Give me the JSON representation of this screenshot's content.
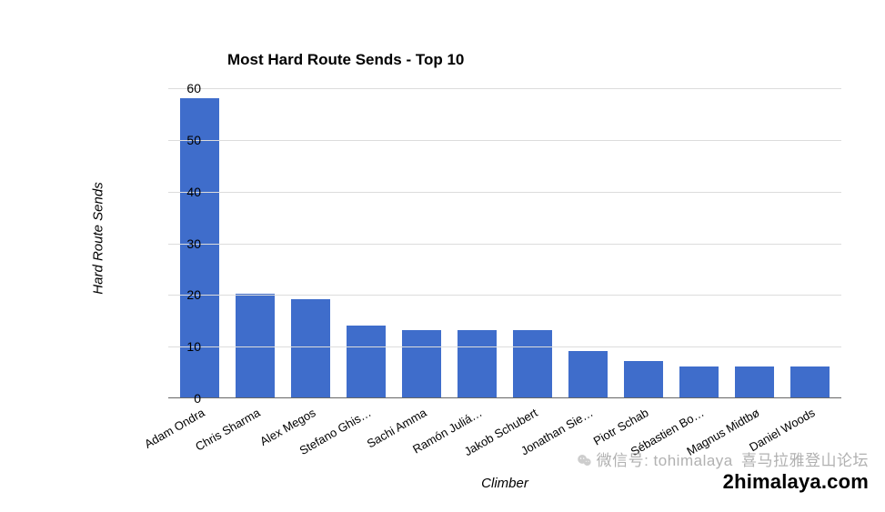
{
  "chart": {
    "type": "bar",
    "title": "Most Hard Route Sends - Top 10",
    "title_fontsize": 17,
    "title_weight": "bold",
    "xaxis_title": "Climber",
    "yaxis_title": "Hard Route Sends",
    "axis_title_fontsize": 15,
    "axis_title_style": "italic",
    "background_color": "#ffffff",
    "grid_color": "#dcdcdc",
    "axis_color": "#666666",
    "bar_color": "#3f6dcb",
    "bar_width_ratio": 0.72,
    "tick_fontsize": 14,
    "xlabel_fontsize": 13,
    "xlabel_rotation_deg": -30,
    "ylim": [
      0,
      62
    ],
    "yticks": [
      0,
      10,
      20,
      30,
      40,
      50,
      60
    ],
    "categories": [
      "Adam Ondra",
      "Chris Sharma",
      "Alex Megos",
      "Stefano Ghis…",
      "Sachi Amma",
      "Ramón Juliá…",
      "Jakob Schubert",
      "Jonathan Sie…",
      "Piotr Schab",
      "Sébastien Bo…",
      "Magnus Midtbø",
      "Daniel Woods"
    ],
    "values": [
      58,
      20,
      19,
      14,
      13,
      13,
      13,
      9,
      7,
      6,
      6,
      6
    ]
  },
  "watermark": {
    "cn_prefix": "微信号: tohimalaya",
    "line2": "2himalaya.com",
    "cn_tail": "喜马拉雅登山论坛"
  }
}
